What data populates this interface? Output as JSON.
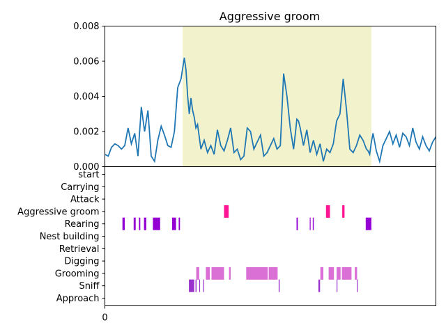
{
  "chart_data": [
    {
      "type": "line",
      "title": "Aggressive groom",
      "xlabel": "",
      "ylabel": "",
      "ylim": [
        0,
        0.008
      ],
      "y_ticks": [
        "0.000",
        "0.002",
        "0.004",
        "0.006",
        "0.008"
      ],
      "x_range": [
        0,
        1000
      ],
      "highlight": {
        "x0": 235,
        "x1": 805,
        "color": "#f2f2cc"
      },
      "line_color": "#1f77b4",
      "series": [
        {
          "x": [
            0,
            10,
            20,
            30,
            40,
            50,
            60,
            70,
            80,
            90,
            100,
            110,
            120,
            130,
            140,
            150,
            160,
            170,
            180,
            190,
            200,
            210,
            220,
            230,
            240,
            245,
            250,
            255,
            260,
            265,
            270,
            275,
            280,
            290,
            300,
            310,
            320,
            330,
            340,
            350,
            360,
            370,
            380,
            390,
            400,
            410,
            420,
            430,
            440,
            450,
            460,
            470,
            480,
            490,
            500,
            510,
            520,
            530,
            540,
            550,
            560,
            570,
            575,
            580,
            585,
            590,
            600,
            610,
            620,
            630,
            640,
            650,
            660,
            670,
            680,
            690,
            700,
            710,
            720,
            730,
            740,
            750,
            760,
            770,
            780,
            790,
            795,
            800,
            805,
            810,
            820,
            830,
            840,
            850,
            860,
            870,
            880,
            890,
            900,
            910,
            920,
            930,
            940,
            950,
            960,
            970,
            980,
            990,
            1000
          ],
          "values": [
            0.0007,
            0.0006,
            0.0011,
            0.0013,
            0.0012,
            0.001,
            0.0012,
            0.0022,
            0.0013,
            0.0019,
            0.0006,
            0.0034,
            0.002,
            0.0032,
            0.0006,
            0.0003,
            0.0015,
            0.0023,
            0.0018,
            0.0012,
            0.0011,
            0.002,
            0.0045,
            0.005,
            0.0062,
            0.0055,
            0.004,
            0.003,
            0.0039,
            0.0032,
            0.0028,
            0.0022,
            0.0024,
            0.001,
            0.0015,
            0.0008,
            0.0012,
            0.0007,
            0.0021,
            0.0012,
            0.0009,
            0.0015,
            0.0022,
            0.0008,
            0.001,
            0.0004,
            0.0006,
            0.0022,
            0.002,
            0.001,
            0.0014,
            0.0018,
            0.0006,
            0.0008,
            0.0012,
            0.0016,
            0.001,
            0.0012,
            0.0053,
            0.004,
            0.0022,
            0.001,
            0.0018,
            0.0027,
            0.0026,
            0.0022,
            0.0012,
            0.0021,
            0.0008,
            0.0015,
            0.0007,
            0.0013,
            0.0003,
            0.001,
            0.0008,
            0.0013,
            0.0026,
            0.003,
            0.005,
            0.0032,
            0.001,
            0.0008,
            0.0012,
            0.0018,
            0.0015,
            0.001,
            0.0009,
            0.0007,
            0.0014,
            0.0019,
            0.0009,
            0.0003,
            0.0012,
            0.0016,
            0.002,
            0.0013,
            0.0018,
            0.0011,
            0.0019,
            0.0017,
            0.0012,
            0.0022,
            0.0014,
            0.001,
            0.0017,
            0.0012,
            0.0009,
            0.0014,
            0.0017
          ]
        }
      ]
    },
    {
      "type": "event_raster",
      "x_range": [
        0,
        1000
      ],
      "x_ticks": [
        "0"
      ],
      "categories": [
        "start",
        "Carrying",
        "Attack",
        "Aggressive groom",
        "Rearing",
        "Nest building",
        "Retrieval",
        "Digging",
        "Grooming",
        "Sniff",
        "Approach"
      ],
      "events": [
        {
          "behavior": "Aggressive groom",
          "color": "#ff1493",
          "intervals": [
            [
              360,
              374
            ],
            [
              668,
              680
            ],
            [
              717,
              724
            ]
          ]
        },
        {
          "behavior": "Rearing",
          "color": "#9400d3",
          "intervals": [
            [
              53,
              60
            ],
            [
              87,
              93
            ],
            [
              103,
              107
            ],
            [
              118,
              125
            ],
            [
              145,
              167
            ],
            [
              203,
              215
            ],
            [
              223,
              227
            ],
            [
              579,
              583
            ],
            [
              619,
              621
            ],
            [
              628,
              631
            ],
            [
              788,
              805
            ]
          ]
        },
        {
          "behavior": "Grooming",
          "color": "#da70d6",
          "intervals": [
            [
              276,
              285
            ],
            [
              305,
              317
            ],
            [
              322,
              360
            ],
            [
              375,
              380
            ],
            [
              427,
              492
            ],
            [
              495,
              522
            ],
            [
              651,
              660
            ],
            [
              676,
              692
            ],
            [
              700,
              712
            ],
            [
              716,
              745
            ],
            [
              755,
              762
            ]
          ]
        },
        {
          "behavior": "Sniff",
          "color": "#9932cc",
          "intervals": [
            [
              254,
              270
            ],
            [
              274,
              277
            ],
            [
              285,
              287
            ],
            [
              297,
              299
            ],
            [
              525,
              528
            ],
            [
              645,
              650
            ],
            [
              700,
              702
            ],
            [
              761,
              763
            ]
          ]
        }
      ]
    }
  ]
}
